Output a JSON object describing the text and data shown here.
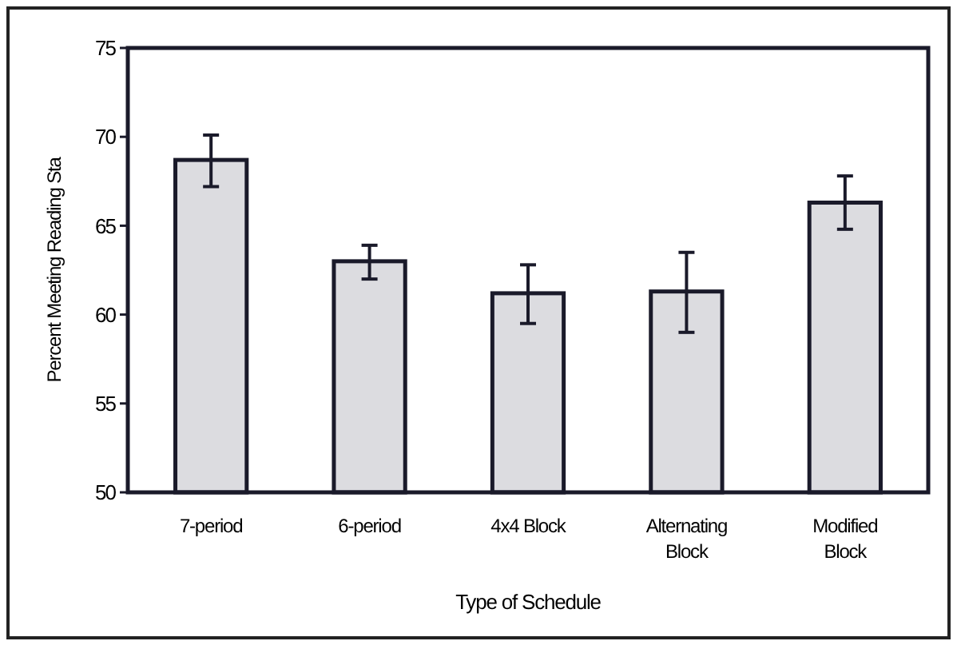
{
  "chart_data": {
    "type": "bar",
    "xlabel": "Type of Schedule",
    "ylabel": "Percent Meeting Reading Sta",
    "categories": [
      "7-period",
      "6-period",
      "4x4 Block",
      "Alternating Block",
      "Modified Block"
    ],
    "values": [
      68.7,
      63.0,
      61.2,
      61.3,
      66.3
    ],
    "errors": [
      [
        67.2,
        70.1
      ],
      [
        62.0,
        63.9
      ],
      [
        59.5,
        62.8
      ],
      [
        59.0,
        63.5
      ],
      [
        64.8,
        67.8
      ]
    ],
    "color": "#dcdce0",
    "ylim": [
      50,
      75
    ],
    "yticks": [
      50,
      55,
      60,
      65,
      70,
      75
    ],
    "grid": false
  }
}
